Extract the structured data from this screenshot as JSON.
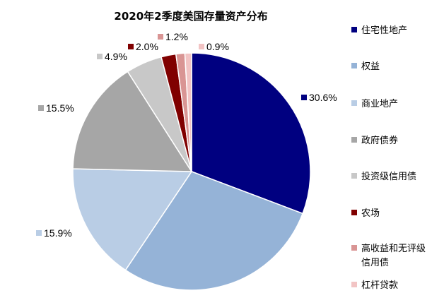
{
  "chart_data": {
    "type": "pie",
    "title": "2020年2季度美国存量资产分布",
    "start_angle_deg": 0,
    "direction": "clockwise",
    "legend_position": "right",
    "slices": [
      {
        "label": "住宅性地产",
        "legend_lines": [
          "住宅性地产"
        ],
        "value": 30.6,
        "value_label": "30.6%",
        "color": "#000080"
      },
      {
        "label": "权益",
        "legend_lines": [
          "权益"
        ],
        "value": 28.5,
        "value_label": "",
        "color": "#95B3D7"
      },
      {
        "label": "商业地产",
        "legend_lines": [
          "商业地产"
        ],
        "value": 15.9,
        "value_label": "15.9%",
        "color": "#B9CDE5"
      },
      {
        "label": "政府债券",
        "legend_lines": [
          "政府债券"
        ],
        "value": 15.5,
        "value_label": "15.5%",
        "color": "#A6A6A6"
      },
      {
        "label": "投资级信用债",
        "legend_lines": [
          "投资级信用债"
        ],
        "value": 4.9,
        "value_label": "4.9%",
        "color": "#C8C8C8"
      },
      {
        "label": "农场",
        "legend_lines": [
          "农场"
        ],
        "value": 2.0,
        "value_label": "2.0%",
        "color": "#800000"
      },
      {
        "label": "高收益和无评级信用债",
        "legend_lines": [
          "高收益和无评级",
          "信用债"
        ],
        "value": 1.2,
        "value_label": "1.2%",
        "color": "#D99594"
      },
      {
        "label": "杠杆贷款",
        "legend_lines": [
          "杠杆贷款"
        ],
        "value": 0.9,
        "value_label": "0.9%",
        "color": "#F2C4C4"
      }
    ]
  }
}
